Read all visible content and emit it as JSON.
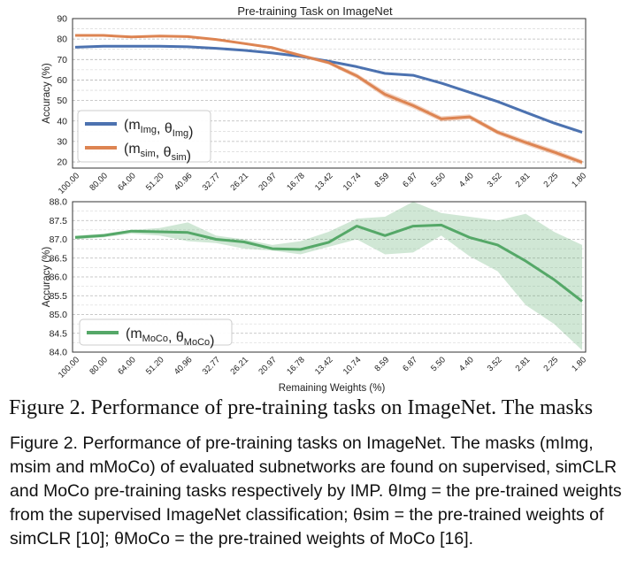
{
  "chart_data": [
    {
      "type": "line",
      "title": "Pre-training Task on ImageNet",
      "ylabel": "Accuracy (%)",
      "xlabel": "",
      "ylim": [
        17,
        90
      ],
      "yticks": [
        20,
        30,
        40,
        50,
        60,
        70,
        80,
        90
      ],
      "grid": true,
      "legend_position": "lower-left",
      "categories": [
        "100.00",
        "80.00",
        "64.00",
        "51.20",
        "40.96",
        "32.77",
        "26.21",
        "20.97",
        "16.78",
        "13.42",
        "10.74",
        "8.59",
        "6.87",
        "5.50",
        "4.40",
        "3.52",
        "2.81",
        "2.25",
        "1.80"
      ],
      "series": [
        {
          "name_main": "(m",
          "name_sub": "Img",
          "name_mid": ", θ",
          "name_sub2": "Img",
          "name_end": ")",
          "color": "#4c72b0",
          "values": [
            76,
            76.5,
            76.5,
            76.5,
            76.2,
            75.5,
            74.5,
            73.2,
            71.5,
            69.2,
            66.5,
            63.2,
            62.3,
            58.5,
            54,
            49.5,
            44.2,
            39,
            34.5
          ],
          "band": [
            0.3,
            0.3,
            0.3,
            0.3,
            0.3,
            0.3,
            0.3,
            0.3,
            0.4,
            0.4,
            0.5,
            0.5,
            0.5,
            0.6,
            0.6,
            0.6,
            0.7,
            0.7,
            0.8
          ]
        },
        {
          "name_main": "(m",
          "name_sub": "sim",
          "name_mid": ", θ",
          "name_sub2": "sim",
          "name_end": ")",
          "color": "#dd8452",
          "values": [
            81.8,
            81.8,
            81,
            81.5,
            81.2,
            79.8,
            77.8,
            75.8,
            72,
            68.5,
            62,
            53,
            47.5,
            41,
            42,
            34.5,
            29.5,
            24.8,
            19.8
          ],
          "band": [
            0.4,
            0.4,
            0.4,
            0.4,
            0.4,
            0.5,
            0.6,
            0.7,
            0.8,
            0.9,
            1.2,
            1.5,
            1.4,
            1.3,
            1.2,
            1.2,
            1.3,
            1.3,
            1.2
          ]
        }
      ]
    },
    {
      "type": "line",
      "title": "",
      "ylabel": "Accuracy (%)",
      "xlabel": "Remaining Weights (%)",
      "ylim": [
        84.0,
        88.0
      ],
      "yticks": [
        "84.0",
        "84.5",
        "85.0",
        "85.5",
        "86.0",
        "86.5",
        "87.0",
        "87.5",
        "88.0"
      ],
      "grid": true,
      "legend_position": "lower-left",
      "categories": [
        "100.00",
        "80.00",
        "64.00",
        "51.20",
        "40.96",
        "32.77",
        "26.21",
        "20.97",
        "16.78",
        "13.42",
        "10.74",
        "8.59",
        "6.87",
        "5.50",
        "4.40",
        "3.52",
        "2.81",
        "2.25",
        "1.80"
      ],
      "series": [
        {
          "name_main": "(m",
          "name_sub": "MoCo",
          "name_mid": ", θ",
          "name_sub2": "MoCo",
          "name_end": ")",
          "color": "#55a868",
          "values": [
            87.05,
            87.1,
            87.22,
            87.2,
            87.18,
            87.0,
            86.93,
            86.75,
            86.73,
            86.92,
            87.35,
            87.1,
            87.35,
            87.38,
            87.05,
            86.85,
            86.42,
            85.93,
            85.35
          ],
          "upper": [
            87.1,
            87.15,
            87.25,
            87.3,
            87.45,
            87.1,
            87.0,
            86.85,
            86.95,
            87.2,
            87.55,
            87.6,
            88.0,
            87.7,
            87.6,
            87.5,
            87.68,
            87.2,
            86.85
          ],
          "lower": [
            87.0,
            87.05,
            87.15,
            87.1,
            86.95,
            86.9,
            86.75,
            86.7,
            86.6,
            86.8,
            87.0,
            86.6,
            86.65,
            87.1,
            86.55,
            86.15,
            85.25,
            84.75,
            84.05
          ]
        }
      ]
    }
  ],
  "caption_clipped": "Figure 2. Performance of pre-training tasks on ImageNet.  The masks",
  "caption_full": "Figure 2. Performance of pre-training tasks on ImageNet. The masks (mImg, msim and mMoCo) of evaluated subnetworks are found on supervised, simCLR and MoCo pre-training tasks respectively by IMP. θImg = the pre-trained weights from the supervised ImageNet classification; θsim = the pre-trained weights of simCLR [10]; θMoCo = the pre-trained weights of MoCo [16]."
}
